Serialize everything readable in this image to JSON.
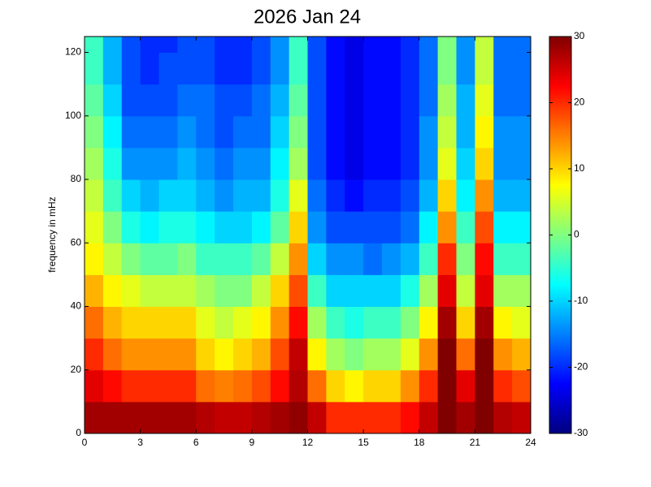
{
  "chart_data": {
    "type": "heatmap",
    "title": "2026 Jan 24",
    "y_label": "frequency in mHz",
    "colormap": "jet",
    "x_bins": [
      0,
      1,
      2,
      3,
      4,
      5,
      6,
      7,
      8,
      9,
      10,
      11,
      12,
      13,
      14,
      15,
      16,
      17,
      18,
      19,
      20,
      21,
      22,
      23,
      24
    ],
    "y_bins": [
      0,
      10,
      20,
      30,
      40,
      50,
      60,
      70,
      80,
      90,
      100,
      110,
      120,
      125
    ],
    "xlim": [
      0,
      24
    ],
    "xticks": [
      0,
      3,
      6,
      9,
      12,
      15,
      18,
      21,
      24
    ],
    "ylim": [
      0,
      125
    ],
    "yticks": [
      0,
      20,
      40,
      60,
      80,
      100,
      120
    ],
    "clim": [
      -30,
      30
    ],
    "cticks": [
      -30,
      -20,
      -10,
      0,
      10,
      20,
      30
    ],
    "values": [
      [
        28,
        28,
        28,
        28,
        28,
        28,
        27,
        26,
        26,
        27,
        28,
        29,
        26,
        20,
        20,
        20,
        20,
        22,
        26,
        30,
        28,
        30,
        27,
        26
      ],
      [
        24,
        22,
        20,
        20,
        20,
        20,
        16,
        15,
        16,
        18,
        22,
        27,
        16,
        10,
        8,
        10,
        10,
        14,
        20,
        30,
        24,
        30,
        20,
        18
      ],
      [
        20,
        16,
        14,
        14,
        14,
        14,
        10,
        8,
        10,
        12,
        18,
        26,
        8,
        2,
        0,
        2,
        2,
        6,
        14,
        30,
        16,
        30,
        14,
        12
      ],
      [
        16,
        12,
        10,
        10,
        10,
        10,
        6,
        4,
        6,
        8,
        14,
        22,
        2,
        -4,
        -6,
        -4,
        -4,
        0,
        8,
        28,
        10,
        28,
        8,
        6
      ],
      [
        12,
        8,
        6,
        4,
        4,
        4,
        2,
        0,
        0,
        4,
        10,
        18,
        -4,
        -10,
        -10,
        -10,
        -10,
        -6,
        2,
        24,
        4,
        24,
        2,
        2
      ],
      [
        8,
        4,
        0,
        -2,
        -2,
        0,
        -4,
        -4,
        -4,
        -2,
        4,
        14,
        -10,
        -14,
        -14,
        -16,
        -14,
        -12,
        -4,
        20,
        0,
        22,
        -4,
        -4
      ],
      [
        6,
        0,
        -6,
        -8,
        -6,
        -6,
        -8,
        -10,
        -10,
        -8,
        -2,
        10,
        -14,
        -18,
        -18,
        -18,
        -18,
        -16,
        -8,
        14,
        -4,
        18,
        -8,
        -8
      ],
      [
        4,
        -4,
        -10,
        -12,
        -10,
        -10,
        -12,
        -14,
        -12,
        -12,
        -6,
        6,
        -16,
        -20,
        -22,
        -20,
        -20,
        -18,
        -12,
        10,
        -8,
        14,
        -12,
        -12
      ],
      [
        2,
        -6,
        -14,
        -14,
        -14,
        -12,
        -14,
        -16,
        -14,
        -14,
        -8,
        2,
        -18,
        -22,
        -24,
        -22,
        -22,
        -20,
        -14,
        6,
        -10,
        10,
        -14,
        -14
      ],
      [
        0,
        -8,
        -16,
        -16,
        -16,
        -14,
        -16,
        -18,
        -16,
        -16,
        -10,
        0,
        -18,
        -22,
        -24,
        -22,
        -22,
        -20,
        -14,
        4,
        -12,
        8,
        -14,
        -14
      ],
      [
        -2,
        -10,
        -18,
        -18,
        -18,
        -16,
        -16,
        -18,
        -18,
        -16,
        -12,
        -2,
        -18,
        -22,
        -24,
        -22,
        -22,
        -20,
        -16,
        2,
        -12,
        6,
        -16,
        -16
      ],
      [
        -4,
        -12,
        -18,
        -20,
        -18,
        -18,
        -18,
        -20,
        -20,
        -18,
        -14,
        -4,
        -18,
        -22,
        -24,
        -22,
        -22,
        -20,
        -16,
        0,
        -14,
        4,
        -16,
        -16
      ],
      [
        -4,
        -12,
        -18,
        -20,
        -20,
        -18,
        -18,
        -20,
        -20,
        -18,
        -14,
        -4,
        -18,
        -22,
        -24,
        -22,
        -22,
        -20,
        -16,
        0,
        -14,
        4,
        -16,
        -16
      ]
    ]
  }
}
